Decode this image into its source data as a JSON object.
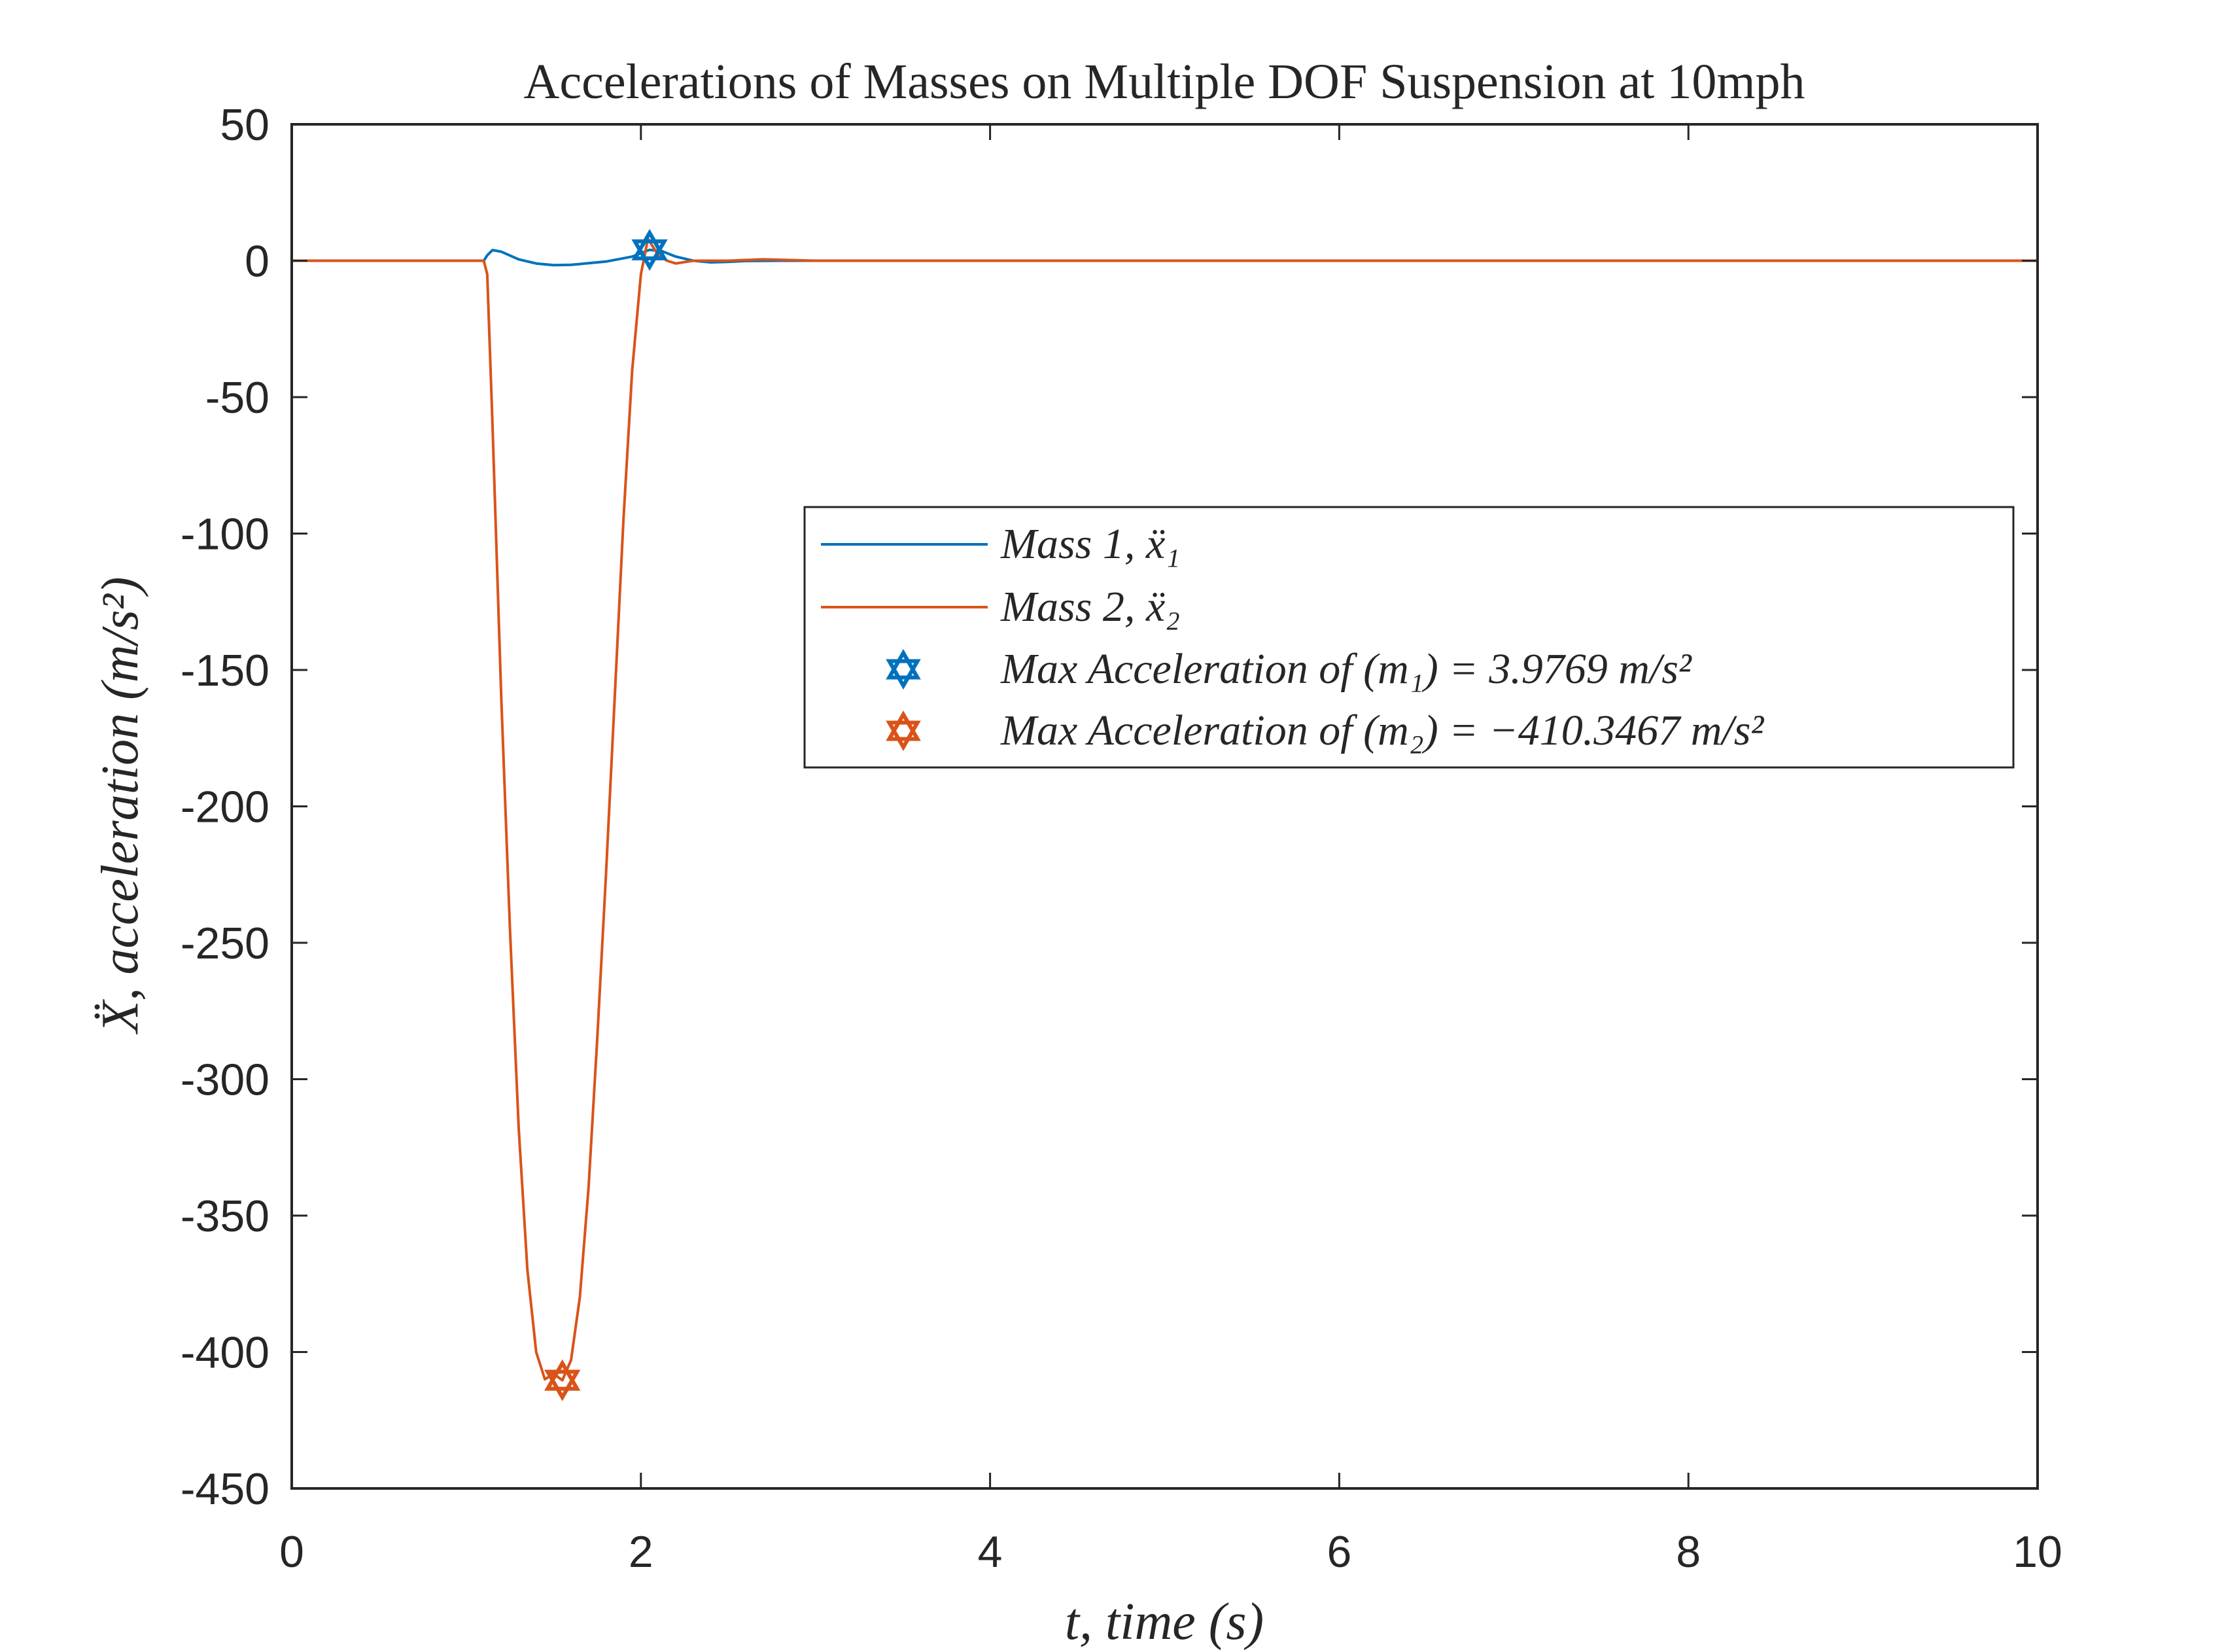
{
  "chart_data": {
    "type": "line",
    "title": "Accelerations of Masses on Multiple DOF Suspension at 10mph",
    "xlabel": "t, time (s)",
    "ylabel": "Ẍ, acceleration (m/s²)",
    "xlim": [
      0,
      10
    ],
    "ylim": [
      -450,
      50
    ],
    "xticks": [
      0,
      2,
      4,
      6,
      8,
      10
    ],
    "yticks": [
      50,
      0,
      -50,
      -100,
      -150,
      -200,
      -250,
      -300,
      -350,
      -400,
      -450
    ],
    "grid": false,
    "legend_position": "right, middle",
    "series": [
      {
        "name": "Mass 1, ẍ1",
        "color": "#0072BD",
        "x": [
          0,
          1.0,
          1.1,
          1.12,
          1.15,
          1.2,
          1.3,
          1.4,
          1.5,
          1.6,
          1.8,
          1.95,
          2.05,
          2.12,
          2.2,
          2.3,
          2.4,
          2.5,
          2.6,
          2.8,
          3.0,
          10
        ],
        "y": [
          0,
          0,
          0,
          2.0,
          3.9,
          3.3,
          0.5,
          -1.0,
          -1.6,
          -1.5,
          -0.3,
          1.5,
          3.9769,
          3.5,
          1.5,
          0.0,
          -0.6,
          -0.4,
          -0.1,
          0,
          0,
          0
        ]
      },
      {
        "name": "Mass 2, ẍ2",
        "color": "#D95319",
        "x": [
          0,
          1.1,
          1.12,
          1.15,
          1.2,
          1.25,
          1.3,
          1.35,
          1.4,
          1.45,
          1.5,
          1.55,
          1.6,
          1.65,
          1.7,
          1.75,
          1.8,
          1.85,
          1.9,
          1.95,
          2.0,
          2.04,
          2.07,
          2.1,
          2.15,
          2.2,
          2.3,
          2.5,
          2.7,
          3.0,
          10
        ],
        "y": [
          0,
          0,
          -5,
          -60,
          -160,
          -245,
          -318,
          -370,
          -400,
          -410,
          -408,
          -410.3467,
          -403,
          -380,
          -340,
          -285,
          -225,
          -160,
          -95,
          -40,
          -5,
          8,
          5,
          2,
          0,
          -1,
          0,
          0,
          0.5,
          0,
          0
        ]
      }
    ],
    "markers": [
      {
        "label": "Max Acceleration of (m1) = 3.9769 m/s²",
        "color": "#0072BD",
        "x": 2.05,
        "y": 3.9769
      },
      {
        "label": "Max Acceleration of (m2) = −410.3467 m/s²",
        "color": "#D95319",
        "x": 1.55,
        "y": -410.3467
      }
    ]
  }
}
